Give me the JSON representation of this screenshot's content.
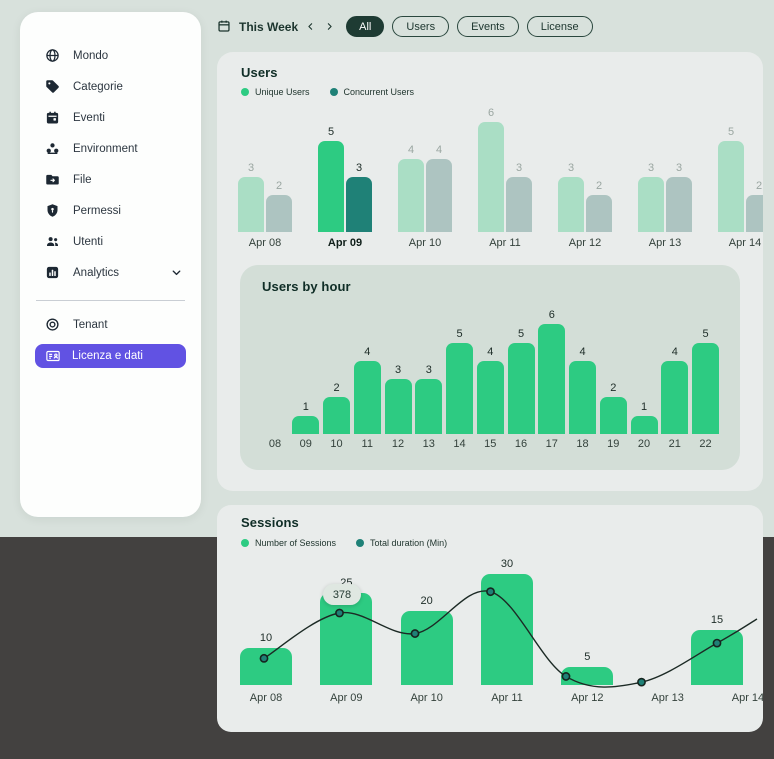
{
  "colors": {
    "page_bg": "#d8e1dc",
    "page_bg_dark": "#434140",
    "card_bg": "#e9eceb",
    "subcard_bg": "#d3ded7",
    "accent_green": "#2dcb82",
    "accent_teal": "#1f8177",
    "muted_green": "#aadec5",
    "muted_teal": "#adc4c1",
    "purple": "#6152e3",
    "pill_dark": "#1e3b33",
    "ink": "#1c2a25",
    "tooltip_bg": "#dfe7e1"
  },
  "sidebar": {
    "items": [
      {
        "label": "Mondo",
        "icon": "globe"
      },
      {
        "label": "Categorie",
        "icon": "tag"
      },
      {
        "label": "Eventi",
        "icon": "calendar"
      },
      {
        "label": "Environment",
        "icon": "cluster"
      },
      {
        "label": "File",
        "icon": "folder-arrow"
      },
      {
        "label": "Permessi",
        "icon": "shield"
      },
      {
        "label": "Utenti",
        "icon": "people"
      },
      {
        "label": "Analytics",
        "icon": "bar-chart",
        "expandable": true
      }
    ],
    "secondary": [
      {
        "label": "Tenant",
        "icon": "tenant-rings"
      },
      {
        "label": "Licenza e dati",
        "icon": "license-card",
        "active": true
      }
    ]
  },
  "topbar": {
    "period_label": "This Week",
    "filters": [
      "All",
      "Users",
      "Events",
      "License"
    ],
    "active_filter": "All"
  },
  "users_card": {
    "title": "Users",
    "legend": [
      {
        "label": "Unique Users",
        "color": "#2dcb82"
      },
      {
        "label": "Concurrent Users",
        "color": "#1f8177"
      }
    ],
    "chart_data": {
      "type": "bar",
      "categories": [
        "Apr 08",
        "Apr 09",
        "Apr 10",
        "Apr 11",
        "Apr 12",
        "Apr 13",
        "Apr 14"
      ],
      "highlighted_category": "Apr 09",
      "series": [
        {
          "name": "Unique Users",
          "values": [
            3,
            5,
            4,
            6,
            3,
            3,
            5
          ]
        },
        {
          "name": "Concurrent Users",
          "values": [
            2,
            3,
            4,
            3,
            2,
            3,
            2
          ]
        }
      ],
      "value_labels": true,
      "grid": false
    }
  },
  "users_by_hour_card": {
    "title": "Users by hour",
    "chart_data": {
      "type": "bar",
      "categories": [
        "08",
        "09",
        "10",
        "11",
        "12",
        "13",
        "14",
        "15",
        "16",
        "17",
        "18",
        "19",
        "20",
        "21",
        "22"
      ],
      "values": [
        0,
        1,
        2,
        4,
        3,
        3,
        5,
        4,
        5,
        6,
        4,
        2,
        1,
        4,
        5
      ],
      "value_labels": true,
      "grid": false
    }
  },
  "sessions_card": {
    "title": "Sessions",
    "legend": [
      {
        "label": "Number of Sessions",
        "color": "#2dcb82"
      },
      {
        "label": "Total duration (Min)",
        "color": "#1f8177"
      }
    ],
    "chart_data": {
      "type": "bar+line",
      "categories": [
        "Apr 08",
        "Apr 09",
        "Apr 10",
        "Apr 11",
        "Apr 12",
        "Apr 13",
        "Apr 14"
      ],
      "series": [
        {
          "name": "Number of Sessions",
          "type": "bar",
          "values": [
            10,
            25,
            20,
            30,
            5,
            0,
            15
          ]
        },
        {
          "name": "Total duration (Min)",
          "type": "line",
          "values_estimated": [
            140,
            378,
            270,
            490,
            45,
            15,
            220
          ]
        }
      ],
      "tooltip": {
        "category": "Apr 09",
        "value": "378"
      },
      "value_labels": true,
      "grid": false
    }
  }
}
